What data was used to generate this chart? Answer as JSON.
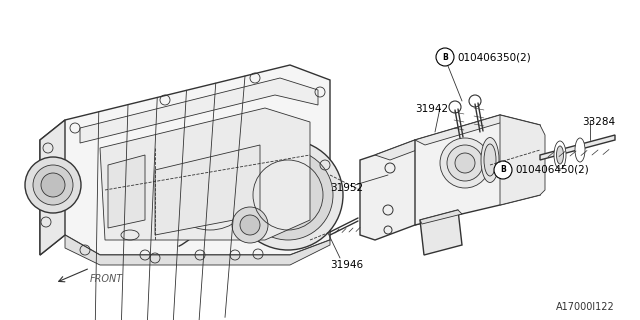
{
  "bg_color": "#ffffff",
  "line_color": "#333333",
  "text_color": "#000000",
  "diagram_id": "A17000l122",
  "label_31952": "31952",
  "label_31946": "31946",
  "label_31942": "31942",
  "label_33284": "33284",
  "label_b1": "010406350(2)",
  "label_b2": "010406450(2)",
  "label_front": "FRONT"
}
